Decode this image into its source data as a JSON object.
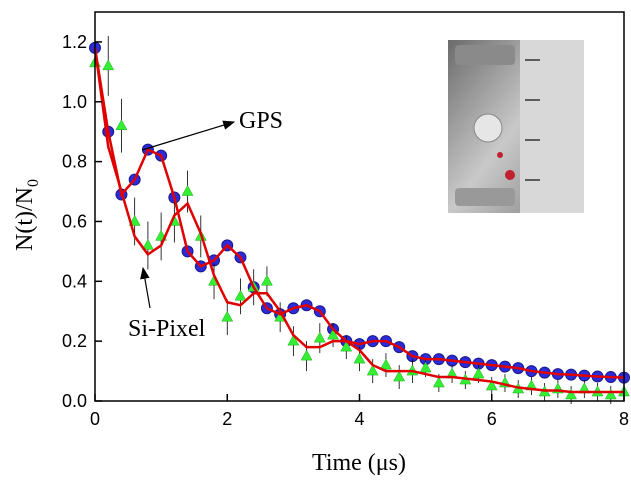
{
  "chart_data": {
    "type": "scatter",
    "xlabel": "Time (μs)",
    "ylabel": {
      "text": "N(t)/N",
      "subscript": "0"
    },
    "annotations": [
      "GPS",
      "Si-Pixel"
    ],
    "xlim": [
      0,
      8
    ],
    "ylim": [
      0,
      1.3
    ],
    "xticks": [
      0,
      2,
      4,
      6,
      8
    ],
    "yticks": [
      {
        "value": 0,
        "label": "0.0"
      },
      0.2,
      0.4,
      0.6,
      0.8,
      {
        "value": 1,
        "label": "1.0"
      },
      1.2
    ],
    "x": [
      0,
      0.2,
      0.4,
      0.6,
      0.8,
      1.0,
      1.2,
      1.4,
      1.6,
      1.8,
      2.0,
      2.2,
      2.4,
      2.6,
      2.8,
      3.0,
      3.2,
      3.4,
      3.6,
      3.8,
      4.0,
      4.2,
      4.4,
      4.6,
      4.8,
      5.0,
      5.2,
      5.4,
      5.6,
      5.8,
      6.0,
      6.2,
      6.4,
      6.6,
      6.8,
      7.0,
      7.2,
      7.4,
      7.6,
      7.8,
      8.0
    ],
    "series": [
      {
        "marker": "circle",
        "color": "#2b2bd9",
        "values": [
          1.18,
          0.9,
          0.69,
          0.74,
          0.84,
          0.82,
          0.68,
          0.5,
          0.45,
          0.47,
          0.52,
          0.48,
          0.38,
          0.31,
          0.29,
          0.31,
          0.32,
          0.3,
          0.24,
          0.2,
          0.19,
          0.2,
          0.2,
          0.18,
          0.15,
          0.14,
          0.14,
          0.135,
          0.13,
          0.125,
          0.12,
          0.115,
          0.11,
          0.1,
          0.095,
          0.09,
          0.088,
          0.085,
          0.082,
          0.08,
          0.078
        ]
      },
      {
        "marker": "triangle",
        "color": "#33ee33",
        "values": [
          1.13,
          1.12,
          0.92,
          0.6,
          0.52,
          0.55,
          0.6,
          0.7,
          0.55,
          0.4,
          0.28,
          0.35,
          0.38,
          0.4,
          0.28,
          0.2,
          0.15,
          0.21,
          0.22,
          0.18,
          0.14,
          0.1,
          0.12,
          0.08,
          0.1,
          0.11,
          0.06,
          0.09,
          0.07,
          0.09,
          0.05,
          0.06,
          0.04,
          0.05,
          0.03,
          0.04,
          0.02,
          0.04,
          0.03,
          0.02,
          0.03
        ],
        "errors": [
          0.1,
          0.1,
          0.09,
          0.08,
          0.08,
          0.08,
          0.07,
          0.07,
          0.07,
          0.06,
          0.06,
          0.06,
          0.06,
          0.05,
          0.05,
          0.05,
          0.05,
          0.05,
          0.04,
          0.04,
          0.04,
          0.04,
          0.04,
          0.04,
          0.04,
          0.03,
          0.03,
          0.03,
          0.03,
          0.03,
          0.03,
          0.03,
          0.03,
          0.03,
          0.03,
          0.03,
          0.03,
          0.03,
          0.03,
          0.03,
          0.03
        ]
      },
      {
        "marker": "line",
        "color": "#e00000",
        "values": [
          1.18,
          0.9,
          0.69,
          0.74,
          0.84,
          0.82,
          0.68,
          0.5,
          0.45,
          0.47,
          0.52,
          0.48,
          0.38,
          0.31,
          0.29,
          0.31,
          0.32,
          0.3,
          0.24,
          0.2,
          0.19,
          0.2,
          0.2,
          0.18,
          0.15,
          0.14,
          0.14,
          0.135,
          0.13,
          0.125,
          0.12,
          0.115,
          0.11,
          0.1,
          0.095,
          0.09,
          0.088,
          0.085,
          0.082,
          0.08,
          0.078
        ]
      },
      {
        "marker": "line",
        "color": "#e00000",
        "values": [
          1.18,
          0.85,
          0.7,
          0.55,
          0.49,
          0.52,
          0.62,
          0.66,
          0.56,
          0.42,
          0.33,
          0.32,
          0.36,
          0.36,
          0.3,
          0.22,
          0.18,
          0.18,
          0.2,
          0.2,
          0.17,
          0.12,
          0.1,
          0.1,
          0.1,
          0.09,
          0.08,
          0.08,
          0.075,
          0.07,
          0.065,
          0.055,
          0.045,
          0.04,
          0.035,
          0.035,
          0.03,
          0.03,
          0.03,
          0.03,
          0.03
        ]
      }
    ]
  }
}
